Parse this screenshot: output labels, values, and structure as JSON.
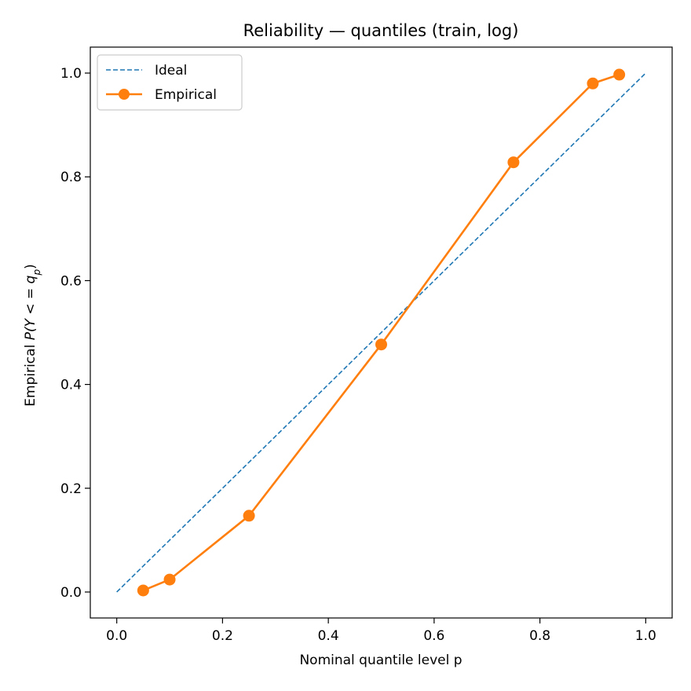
{
  "chart_data": {
    "type": "line",
    "title": "Reliability — quantiles (train, log)",
    "xlabel": "Nominal quantile level p",
    "ylabel": {
      "prefix": "Empirical ",
      "expr": "P(Y < = q",
      "subscript": "p",
      "suffix": ")"
    },
    "xlim": [
      -0.05,
      1.05
    ],
    "ylim": [
      -0.05,
      1.05
    ],
    "xticks": [
      0.0,
      0.2,
      0.4,
      0.6,
      0.8,
      1.0
    ],
    "yticks": [
      0.0,
      0.2,
      0.4,
      0.6,
      0.8,
      1.0
    ],
    "xtick_labels": [
      "0.0",
      "0.2",
      "0.4",
      "0.6",
      "0.8",
      "1.0"
    ],
    "ytick_labels": [
      "0.0",
      "0.2",
      "0.4",
      "0.6",
      "0.8",
      "1.0"
    ],
    "grid": false,
    "legend_position": "upper-left",
    "series": [
      {
        "name": "Ideal",
        "style": "dashed",
        "marker": "none",
        "color": "#1f77b4",
        "x": [
          0.0,
          1.0
        ],
        "y": [
          0.0,
          1.0
        ]
      },
      {
        "name": "Empirical",
        "style": "solid",
        "marker": "circle",
        "color": "#ff7f0e",
        "x": [
          0.05,
          0.1,
          0.25,
          0.5,
          0.75,
          0.9,
          0.95
        ],
        "y": [
          0.003,
          0.024,
          0.147,
          0.477,
          0.828,
          0.98,
          0.997
        ]
      }
    ]
  }
}
